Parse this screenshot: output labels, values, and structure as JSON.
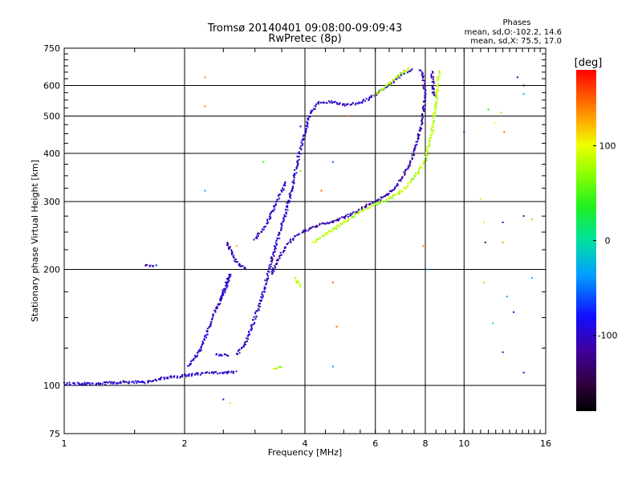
{
  "chart_data": {
    "type": "scatter",
    "title": "Tromsø 20140401 09:08:00-09:09:43",
    "subtitle": "RwPretec (8p)",
    "stats": {
      "heading": "Phases",
      "line1": "mean, sd,O:-102.2, 14.6",
      "line2": "mean, sd,X:  75.5, 17.0"
    },
    "xlabel": "Frequency [MHz]",
    "ylabel": "Stationary phase Virtual Height [km]",
    "xscale": "log",
    "yscale": "log",
    "xlim": [
      1,
      16
    ],
    "ylim": [
      75,
      750
    ],
    "grid": true,
    "xticks": [
      {
        "value": 1,
        "label": "1"
      },
      {
        "value": 2,
        "label": "2"
      },
      {
        "value": 4,
        "label": "4"
      },
      {
        "value": 6,
        "label": "6"
      },
      {
        "value": 8,
        "label": "8"
      },
      {
        "value": 10,
        "label": "10"
      },
      {
        "value": 16,
        "label": "16"
      }
    ],
    "yticks": [
      {
        "value": 75,
        "label": "75"
      },
      {
        "value": 100,
        "label": "100"
      },
      {
        "value": 200,
        "label": "200"
      },
      {
        "value": 300,
        "label": "300"
      },
      {
        "value": 400,
        "label": "400"
      },
      {
        "value": 500,
        "label": "500"
      },
      {
        "value": 600,
        "label": "600"
      },
      {
        "value": 750,
        "label": "750"
      }
    ],
    "colorbar": {
      "label": "[deg]",
      "range": [
        -180,
        180
      ],
      "ticks": [
        {
          "value": 100,
          "label": "100"
        },
        {
          "value": 0,
          "label": "0"
        },
        {
          "value": -100,
          "label": "-100"
        }
      ]
    },
    "traces": [
      {
        "phase": -100,
        "points": [
          [
            1.0,
            101
          ],
          [
            1.2,
            101
          ],
          [
            1.4,
            102
          ],
          [
            1.6,
            102
          ],
          [
            1.75,
            104
          ],
          [
            1.85,
            105
          ],
          [
            2.0,
            106
          ],
          [
            2.3,
            108
          ],
          [
            2.7,
            108
          ]
        ]
      },
      {
        "phase": -100,
        "points": [
          [
            1.6,
            205
          ],
          [
            1.7,
            205
          ]
        ]
      },
      {
        "phase": -100,
        "points": [
          [
            2.05,
            112
          ],
          [
            2.2,
            125
          ],
          [
            2.35,
            150
          ],
          [
            2.45,
            165
          ],
          [
            2.55,
            185
          ],
          [
            2.6,
            195
          ],
          [
            2.55,
            180
          ],
          [
            2.45,
            165
          ]
        ]
      },
      {
        "phase": -100,
        "points": [
          [
            2.4,
            120
          ],
          [
            2.6,
            120
          ]
        ]
      },
      {
        "phase": -100,
        "points": [
          [
            2.55,
            235
          ],
          [
            2.65,
            215
          ],
          [
            2.75,
            205
          ],
          [
            2.85,
            200
          ]
        ]
      },
      {
        "phase": -100,
        "points": [
          [
            2.7,
            120
          ],
          [
            2.85,
            130
          ],
          [
            3.0,
            150
          ],
          [
            3.15,
            175
          ],
          [
            3.25,
            200
          ],
          [
            3.4,
            235
          ],
          [
            3.55,
            270
          ],
          [
            3.7,
            320
          ],
          [
            3.85,
            390
          ],
          [
            4.0,
            450
          ],
          [
            4.1,
            500
          ],
          [
            4.3,
            540
          ],
          [
            4.6,
            545
          ],
          [
            5.0,
            535
          ],
          [
            5.4,
            540
          ],
          [
            5.8,
            555
          ],
          [
            6.2,
            580
          ],
          [
            6.6,
            610
          ],
          [
            7.1,
            650
          ],
          [
            7.5,
            660
          ]
        ]
      },
      {
        "phase": -100,
        "points": [
          [
            3.0,
            240
          ],
          [
            3.2,
            260
          ],
          [
            3.35,
            290
          ],
          [
            3.5,
            320
          ],
          [
            3.6,
            340
          ]
        ]
      },
      {
        "phase": -110,
        "points": [
          [
            3.3,
            195
          ],
          [
            3.45,
            215
          ],
          [
            3.6,
            230
          ],
          [
            3.8,
            245
          ],
          [
            4.1,
            255
          ],
          [
            4.4,
            262
          ],
          [
            4.8,
            268
          ],
          [
            5.3,
            280
          ],
          [
            5.8,
            295
          ],
          [
            6.2,
            305
          ],
          [
            6.6,
            320
          ],
          [
            7.0,
            345
          ],
          [
            7.4,
            385
          ],
          [
            7.8,
            470
          ],
          [
            8.0,
            560
          ],
          [
            7.9,
            640
          ],
          [
            7.75,
            660
          ]
        ]
      },
      {
        "phase": -110,
        "points": [
          [
            8.3,
            650
          ],
          [
            8.35,
            620
          ],
          [
            8.4,
            560
          ]
        ]
      },
      {
        "phase": 80,
        "points": [
          [
            4.2,
            235
          ],
          [
            4.6,
            250
          ],
          [
            5.0,
            265
          ],
          [
            5.5,
            283
          ],
          [
            6.0,
            295
          ],
          [
            6.5,
            305
          ],
          [
            7.0,
            320
          ],
          [
            7.5,
            345
          ],
          [
            8.0,
            385
          ],
          [
            8.3,
            450
          ],
          [
            8.5,
            540
          ],
          [
            8.6,
            610
          ],
          [
            8.7,
            655
          ]
        ]
      },
      {
        "phase": 80,
        "points": [
          [
            6.0,
            570
          ],
          [
            6.4,
            600
          ],
          [
            6.9,
            640
          ],
          [
            7.3,
            665
          ]
        ]
      },
      {
        "phase": 80,
        "points": [
          [
            3.35,
            110
          ],
          [
            3.5,
            112
          ]
        ]
      },
      {
        "phase": 80,
        "points": [
          [
            3.8,
            190
          ],
          [
            3.9,
            180
          ]
        ]
      }
    ],
    "stray_points": [
      {
        "x": 2.25,
        "y": 630,
        "phase": 140
      },
      {
        "x": 2.25,
        "y": 530,
        "phase": 140
      },
      {
        "x": 2.25,
        "y": 320,
        "phase": -40
      },
      {
        "x": 2.5,
        "y": 92,
        "phase": -100
      },
      {
        "x": 2.6,
        "y": 90,
        "phase": 110
      },
      {
        "x": 2.7,
        "y": 230,
        "phase": 130
      },
      {
        "x": 3.15,
        "y": 380,
        "phase": 40
      },
      {
        "x": 3.9,
        "y": 360,
        "phase": 60
      },
      {
        "x": 3.9,
        "y": 470,
        "phase": -100
      },
      {
        "x": 4.4,
        "y": 320,
        "phase": 150
      },
      {
        "x": 4.7,
        "y": 380,
        "phase": -60
      },
      {
        "x": 4.7,
        "y": 185,
        "phase": 150
      },
      {
        "x": 4.8,
        "y": 142,
        "phase": 150
      },
      {
        "x": 4.7,
        "y": 112,
        "phase": -40
      },
      {
        "x": 5.1,
        "y": 500,
        "phase": 150
      },
      {
        "x": 7.9,
        "y": 230,
        "phase": 140
      },
      {
        "x": 8.1,
        "y": 200,
        "phase": -40
      },
      {
        "x": 10.0,
        "y": 455,
        "phase": -100
      },
      {
        "x": 11.0,
        "y": 305,
        "phase": 90
      },
      {
        "x": 11.2,
        "y": 265,
        "phase": 110
      },
      {
        "x": 11.3,
        "y": 235,
        "phase": -130
      },
      {
        "x": 11.2,
        "y": 185,
        "phase": 120
      },
      {
        "x": 11.5,
        "y": 520,
        "phase": 40
      },
      {
        "x": 11.8,
        "y": 145,
        "phase": 30
      },
      {
        "x": 12.0,
        "y": 480,
        "phase": 100
      },
      {
        "x": 12.4,
        "y": 510,
        "phase": 120
      },
      {
        "x": 12.6,
        "y": 455,
        "phase": 150
      },
      {
        "x": 12.5,
        "y": 265,
        "phase": -100
      },
      {
        "x": 12.5,
        "y": 235,
        "phase": 130
      },
      {
        "x": 12.5,
        "y": 122,
        "phase": -100
      },
      {
        "x": 12.8,
        "y": 170,
        "phase": -40
      },
      {
        "x": 13.3,
        "y": 155,
        "phase": -100
      },
      {
        "x": 13.6,
        "y": 630,
        "phase": -100
      },
      {
        "x": 14.1,
        "y": 600,
        "phase": -130
      },
      {
        "x": 14.1,
        "y": 570,
        "phase": -30
      },
      {
        "x": 14.1,
        "y": 275,
        "phase": -100
      },
      {
        "x": 14.1,
        "y": 108,
        "phase": -100
      },
      {
        "x": 14.8,
        "y": 270,
        "phase": 120
      },
      {
        "x": 14.8,
        "y": 190,
        "phase": -40
      }
    ]
  }
}
